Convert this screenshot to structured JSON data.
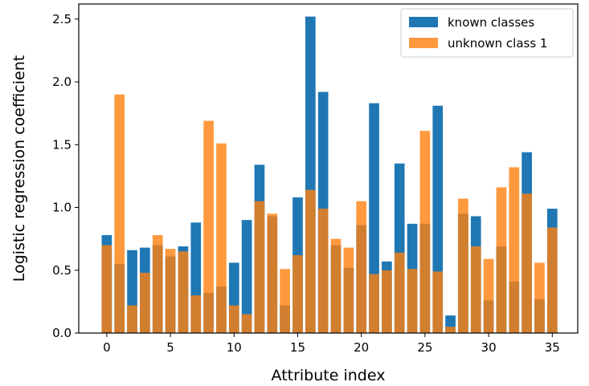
{
  "chart_data": {
    "type": "bar",
    "xlabel": "Attribute index",
    "ylabel": "Logistic regression coefficient",
    "xlim": [
      -2.2,
      37.0
    ],
    "ylim": [
      0.0,
      2.62
    ],
    "xticks": [
      0,
      5,
      10,
      15,
      20,
      25,
      30,
      35
    ],
    "yticks": [
      0.0,
      0.5,
      1.0,
      1.5,
      2.0,
      2.5
    ],
    "ytick_labels": [
      "0.0",
      "0.5",
      "1.0",
      "1.5",
      "2.0",
      "2.5"
    ],
    "grid": false,
    "legend_position": "top-right",
    "x": [
      0,
      1,
      2,
      3,
      4,
      5,
      6,
      7,
      8,
      9,
      10,
      11,
      12,
      13,
      14,
      15,
      16,
      17,
      18,
      19,
      20,
      21,
      22,
      23,
      24,
      25,
      26,
      27,
      28,
      29,
      30,
      31,
      32,
      33,
      34,
      35
    ],
    "series": [
      {
        "name": "known classes",
        "color": "#1f77b4",
        "opacity": 1.0,
        "values": [
          0.78,
          0.55,
          0.66,
          0.68,
          0.7,
          0.61,
          0.69,
          0.88,
          0.32,
          0.37,
          0.56,
          0.9,
          1.34,
          0.93,
          0.22,
          1.08,
          2.52,
          1.92,
          0.7,
          0.52,
          0.86,
          1.83,
          0.57,
          1.35,
          0.87,
          0.87,
          1.81,
          0.14,
          0.95,
          0.93,
          0.26,
          0.69,
          0.41,
          1.44,
          0.27,
          0.99
        ]
      },
      {
        "name": "unknown class 1",
        "color": "#ff7f0e",
        "opacity": 0.8,
        "values": [
          0.7,
          1.9,
          0.22,
          0.48,
          0.78,
          0.67,
          0.65,
          0.3,
          1.69,
          1.51,
          0.22,
          0.15,
          1.05,
          0.95,
          0.51,
          0.62,
          1.14,
          0.99,
          0.75,
          0.68,
          1.05,
          0.47,
          0.5,
          0.64,
          0.51,
          1.61,
          0.49,
          0.05,
          1.07,
          0.69,
          0.59,
          1.16,
          1.32,
          1.11,
          0.56,
          0.84
        ]
      }
    ]
  }
}
